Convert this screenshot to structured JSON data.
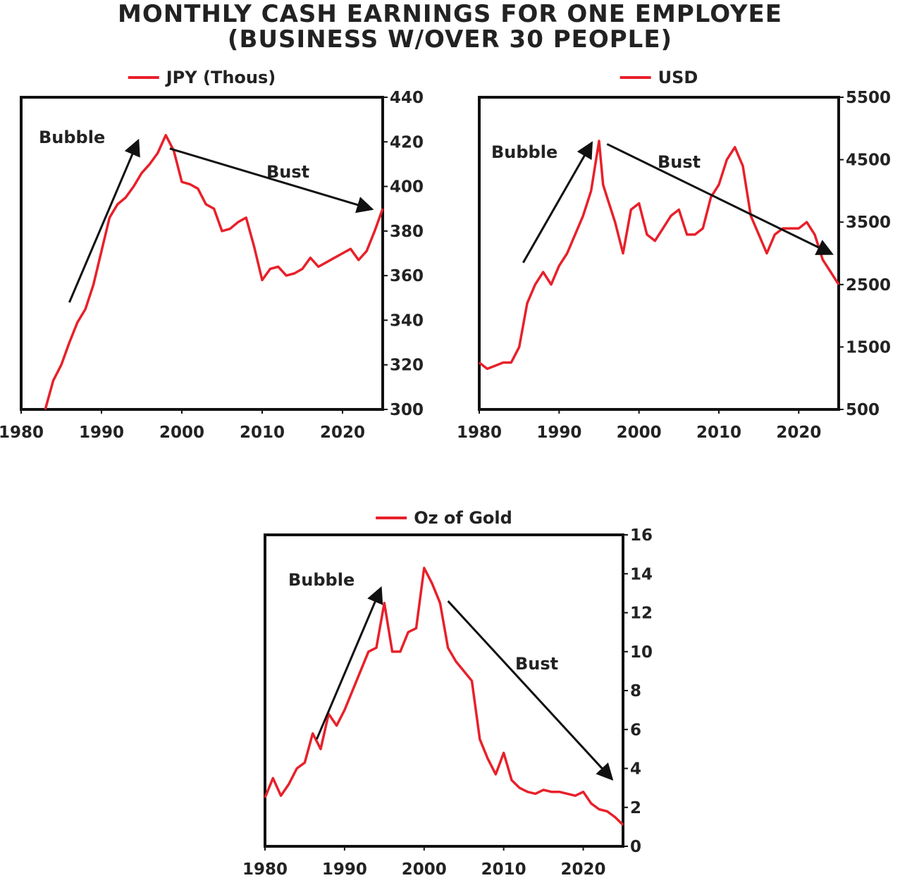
{
  "title_lines": [
    "MONTHLY CASH EARNINGS FOR ONE EMPLOYEE",
    "(BUSINESS W/OVER 30 PEOPLE)"
  ],
  "colors": {
    "series": "#e8202a",
    "axis": "#111111",
    "text": "#222222"
  },
  "chart_data": [
    {
      "type": "line",
      "legend": "JPY (Thous)",
      "legend_position": "top-center",
      "y_axis_side": "right",
      "grid": false,
      "xlim": [
        1980,
        2025
      ],
      "ylim": [
        300,
        440
      ],
      "x_ticks": [
        1980,
        1990,
        2000,
        2010,
        2020
      ],
      "y_ticks": [
        300,
        320,
        340,
        360,
        380,
        400,
        420,
        440
      ],
      "series": [
        {
          "name": "JPY (Thous)",
          "x": [
            1983,
            1984,
            1985,
            1986,
            1987,
            1988,
            1989,
            1990,
            1991,
            1992,
            1993,
            1994,
            1995,
            1996,
            1997,
            1998,
            1999,
            2000,
            2001,
            2002,
            2003,
            2004,
            2005,
            2006,
            2007,
            2008,
            2009,
            2010,
            2011,
            2012,
            2013,
            2014,
            2015,
            2016,
            2017,
            2018,
            2019,
            2020,
            2021,
            2022,
            2023,
            2024,
            2025
          ],
          "y": [
            300,
            313,
            320,
            330,
            339,
            345,
            356,
            371,
            386,
            392,
            395,
            400,
            406,
            410,
            415,
            423,
            416,
            402,
            401,
            399,
            392,
            390,
            380,
            381,
            384,
            386,
            373,
            358,
            363,
            364,
            360,
            361,
            363,
            368,
            364,
            366,
            368,
            370,
            372,
            367,
            371,
            380,
            390
          ]
        }
      ],
      "annotations": [
        {
          "text": "Bubble",
          "arrow_from": [
            1986,
            348
          ],
          "arrow_to": [
            1994.5,
            420
          ]
        },
        {
          "text": "Bust",
          "arrow_from": [
            1998.5,
            417
          ],
          "arrow_to": [
            2023.5,
            390
          ]
        }
      ]
    },
    {
      "type": "line",
      "legend": "USD",
      "legend_position": "top-center",
      "y_axis_side": "right",
      "grid": false,
      "xlim": [
        1980,
        2025
      ],
      "ylim": [
        500,
        5500
      ],
      "x_ticks": [
        1980,
        1990,
        2000,
        2010,
        2020
      ],
      "y_ticks": [
        500,
        1500,
        2500,
        3500,
        4500,
        5500
      ],
      "series": [
        {
          "name": "USD",
          "x": [
            1980,
            1981,
            1982,
            1983,
            1984,
            1985,
            1986,
            1987,
            1988,
            1989,
            1990,
            1991,
            1992,
            1993,
            1994,
            1995,
            1995.5,
            1996,
            1997,
            1998,
            1999,
            2000,
            2001,
            2002,
            2003,
            2004,
            2005,
            2006,
            2007,
            2008,
            2009,
            2010,
            2011,
            2012,
            2013,
            2014,
            2015,
            2016,
            2017,
            2018,
            2019,
            2020,
            2021,
            2022,
            2023,
            2024,
            2025
          ],
          "y": [
            1250,
            1150,
            1200,
            1250,
            1250,
            1500,
            2200,
            2500,
            2700,
            2500,
            2800,
            3000,
            3300,
            3600,
            4000,
            4800,
            4100,
            3900,
            3500,
            3000,
            3700,
            3800,
            3300,
            3200,
            3400,
            3600,
            3700,
            3300,
            3300,
            3400,
            3900,
            4100,
            4500,
            4700,
            4400,
            3600,
            3300,
            3000,
            3300,
            3400,
            3400,
            3400,
            3500,
            3300,
            2900,
            2700,
            2500
          ]
        }
      ],
      "annotations": [
        {
          "text": "Bubble",
          "arrow_from": [
            1985.5,
            2850
          ],
          "arrow_to": [
            1994,
            4750
          ]
        },
        {
          "text": "Bust",
          "arrow_from": [
            1996,
            4750
          ],
          "arrow_to": [
            2024,
            3000
          ]
        }
      ]
    },
    {
      "type": "line",
      "legend": "Oz of Gold",
      "legend_position": "top-center",
      "y_axis_side": "right",
      "grid": false,
      "xlim": [
        1980,
        2025
      ],
      "ylim": [
        0,
        16
      ],
      "x_ticks": [
        1980,
        1990,
        2000,
        2010,
        2020
      ],
      "y_ticks": [
        0,
        2,
        4,
        6,
        8,
        10,
        12,
        14,
        16
      ],
      "series": [
        {
          "name": "Oz of Gold",
          "x": [
            1980,
            1981,
            1982,
            1983,
            1984,
            1985,
            1986,
            1987,
            1988,
            1989,
            1990,
            1991,
            1992,
            1993,
            1994,
            1995,
            1996,
            1997,
            1998,
            1999,
            2000,
            2001,
            2002,
            2003,
            2004,
            2005,
            2006,
            2007,
            2008,
            2009,
            2010,
            2011,
            2012,
            2013,
            2014,
            2015,
            2016,
            2017,
            2018,
            2019,
            2020,
            2021,
            2022,
            2023,
            2024,
            2025
          ],
          "y": [
            2.5,
            3.5,
            2.6,
            3.2,
            4.0,
            4.3,
            5.8,
            5.0,
            6.8,
            6.2,
            7.0,
            8.0,
            9.0,
            10.0,
            10.2,
            12.5,
            10.0,
            10.0,
            11.0,
            11.2,
            14.3,
            13.5,
            12.5,
            10.2,
            9.5,
            9.0,
            8.5,
            5.5,
            4.5,
            3.7,
            4.8,
            3.4,
            3.0,
            2.8,
            2.7,
            2.9,
            2.8,
            2.8,
            2.7,
            2.6,
            2.8,
            2.2,
            1.9,
            1.8,
            1.5,
            1.1
          ]
        }
      ],
      "annotations": [
        {
          "text": "Bubble",
          "arrow_from": [
            1986.5,
            5.5
          ],
          "arrow_to": [
            1994.5,
            13.2
          ]
        },
        {
          "text": "Bust",
          "arrow_from": [
            2003,
            12.6
          ],
          "arrow_to": [
            2023.5,
            3.5
          ]
        }
      ]
    }
  ]
}
